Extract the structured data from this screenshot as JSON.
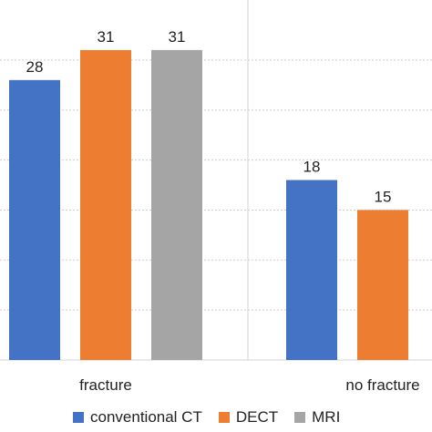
{
  "chart_data": {
    "type": "bar",
    "categories": [
      "fracture",
      "no fracture"
    ],
    "series": [
      {
        "name": "conventional CT",
        "color": "#4472C4",
        "values": [
          28,
          18
        ]
      },
      {
        "name": "DECT",
        "color": "#ED7D31",
        "values": [
          31,
          15
        ]
      },
      {
        "name": "MRI",
        "color": "#A5A5A5",
        "values": [
          31,
          null
        ]
      }
    ],
    "data_labels_visible": [
      "28",
      "31",
      "31",
      "18",
      "15"
    ],
    "ylim": [
      0,
      32
    ],
    "grid": true,
    "grid_style": "dashed",
    "legend_position": "bottom"
  }
}
